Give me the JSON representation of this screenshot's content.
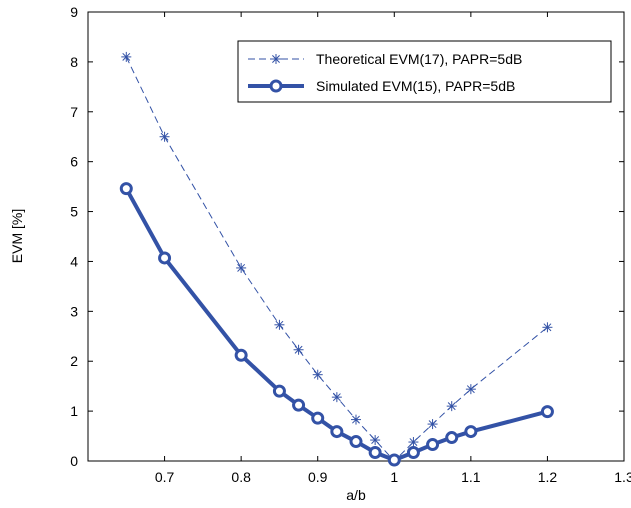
{
  "chart_data": {
    "type": "line",
    "xlabel": "a/b",
    "ylabel": "EVM [%]",
    "xlim": [
      0.6,
      1.3
    ],
    "ylim": [
      0,
      9
    ],
    "xticks": [
      "0.7",
      "0.8",
      "0.9",
      "1",
      "1.1",
      "1.2",
      "1.3"
    ],
    "yticks": [
      "0",
      "1",
      "2",
      "3",
      "4",
      "5",
      "6",
      "7",
      "8",
      "9"
    ],
    "grid": false,
    "legend_position": "top-right",
    "colors": {
      "series": "#3352a6"
    },
    "series": [
      {
        "name": "Theoretical EVM(17), PAPR=5dB",
        "style": "dashed",
        "marker": "star",
        "x": [
          0.65,
          0.7,
          0.8,
          0.85,
          0.875,
          0.9,
          0.925,
          0.95,
          0.975,
          1.0,
          1.025,
          1.05,
          1.075,
          1.1,
          1.2
        ],
        "y": [
          8.1,
          6.5,
          3.87,
          2.73,
          2.23,
          1.73,
          1.28,
          0.83,
          0.42,
          0.0,
          0.38,
          0.74,
          1.1,
          1.44,
          2.68
        ]
      },
      {
        "name": "Simulated EVM(15), PAPR=5dB",
        "style": "solid",
        "marker": "circle",
        "x": [
          0.65,
          0.7,
          0.8,
          0.85,
          0.875,
          0.9,
          0.925,
          0.95,
          0.975,
          1.0,
          1.025,
          1.05,
          1.075,
          1.1,
          1.2
        ],
        "y": [
          5.46,
          4.07,
          2.12,
          1.4,
          1.12,
          0.86,
          0.59,
          0.39,
          0.17,
          0.02,
          0.17,
          0.33,
          0.47,
          0.59,
          0.99
        ]
      }
    ]
  }
}
